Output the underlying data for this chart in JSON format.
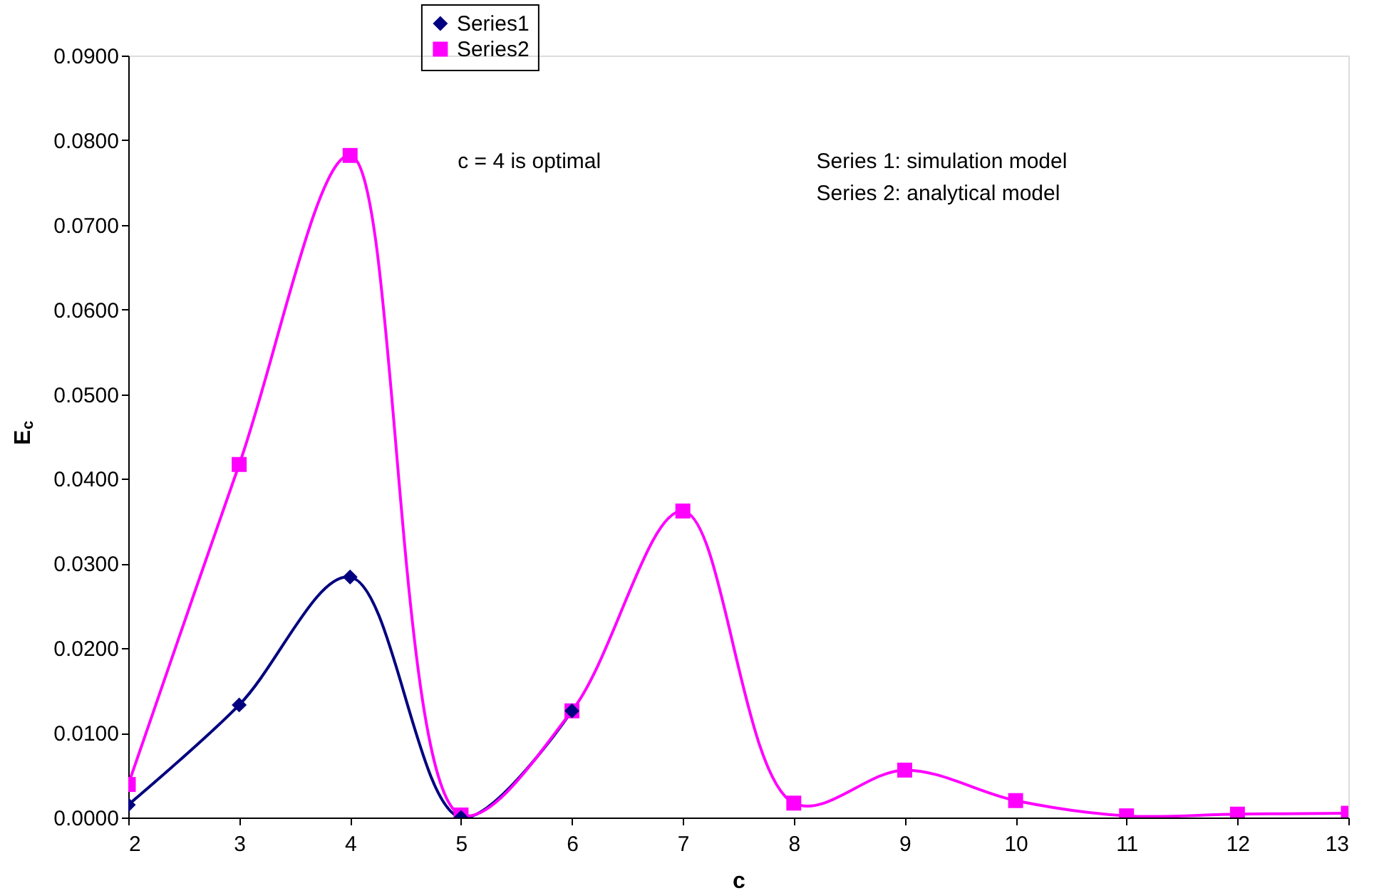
{
  "chart_data": {
    "type": "line",
    "xlabel": "c",
    "ylabel": "E$_{c}$",
    "x": [
      2,
      3,
      4,
      5,
      6,
      7,
      8,
      9,
      10,
      11,
      12,
      13
    ],
    "series": [
      {
        "name": "Series1",
        "color": "#000080",
        "marker": "diamond",
        "values": [
          0.0015,
          0.0133,
          0.0284,
          0.0,
          0.0126,
          null,
          null,
          null,
          null,
          null,
          null,
          null
        ]
      },
      {
        "name": "Series2",
        "color": "#ff00ff",
        "marker": "square",
        "values": [
          0.0039,
          0.0417,
          0.0782,
          0.0003,
          0.0126,
          0.0362,
          0.0017,
          0.0056,
          0.002,
          0.0002,
          0.0004,
          0.0005
        ]
      }
    ],
    "xlim": [
      2,
      13
    ],
    "xticks": [
      2,
      3,
      4,
      5,
      6,
      7,
      8,
      9,
      10,
      11,
      12,
      13
    ],
    "ylim": [
      0,
      0.09
    ],
    "yticks": [
      {
        "value": 0,
        "label": "0.0000"
      },
      {
        "value": 0.01,
        "label": "0.0100"
      },
      {
        "value": 0.02,
        "label": "0.0200"
      },
      {
        "value": 0.03,
        "label": "0.0300"
      },
      {
        "value": 0.04,
        "label": "0.0400"
      },
      {
        "value": 0.05,
        "label": "0.0500"
      },
      {
        "value": 0.06,
        "label": "0.0600"
      },
      {
        "value": 0.07,
        "label": "0.0700"
      },
      {
        "value": 0.08,
        "label": "0.0800"
      },
      {
        "value": 0.09,
        "label": "0.0900"
      }
    ],
    "annotations": [
      "c = 4 is optimal",
      "Series 1: simulation model",
      "Series 2: analytical model"
    ],
    "grid": false,
    "legend": "top",
    "line_style": "solid"
  }
}
